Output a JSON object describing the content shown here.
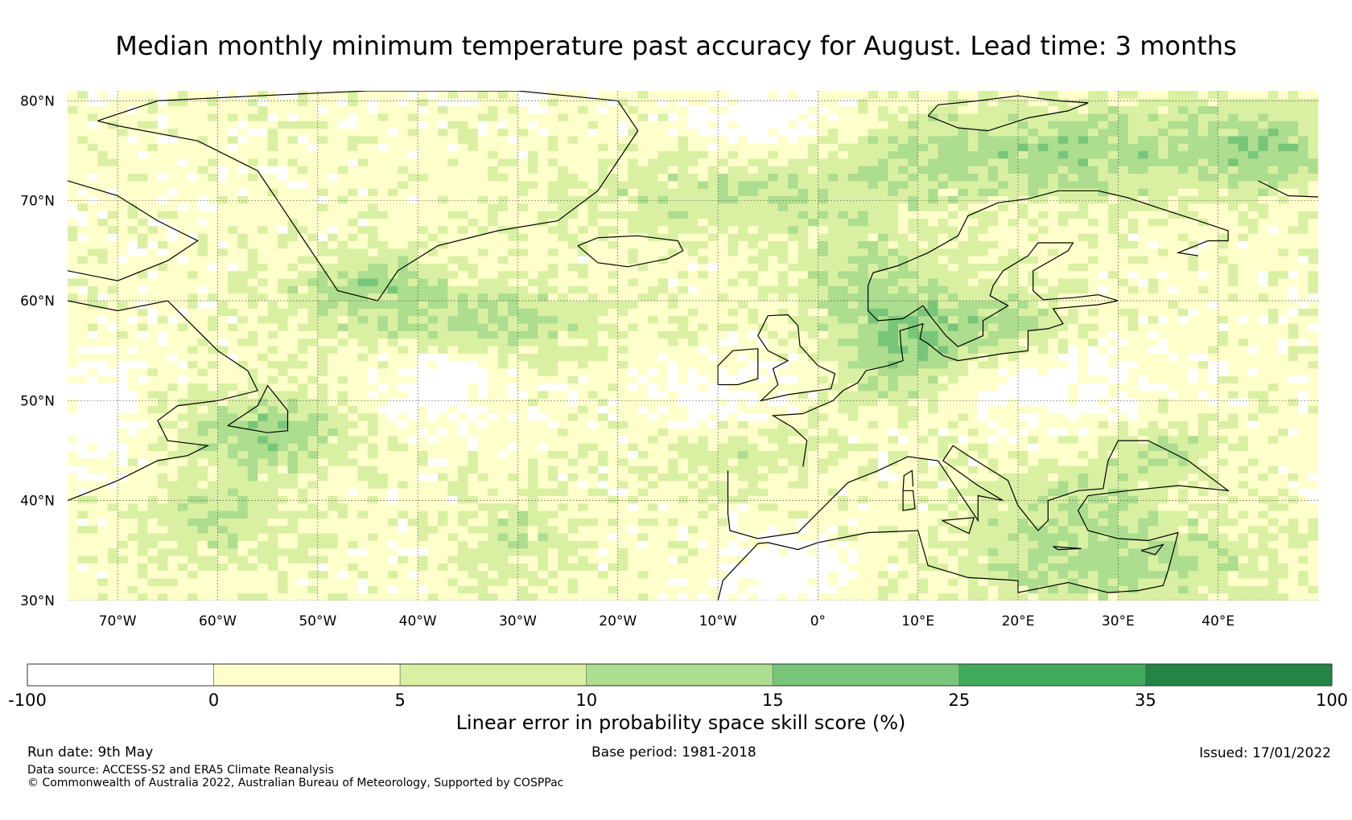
{
  "title": "Median monthly minimum temperature past accuracy for August. Lead time: 3 months",
  "map": {
    "lat_ticks": [
      "80°N",
      "70°N",
      "60°N",
      "50°N",
      "40°N",
      "30°N"
    ],
    "lon_ticks": [
      "70°W",
      "60°W",
      "50°W",
      "40°W",
      "30°W",
      "20°W",
      "10°W",
      "0°",
      "10°E",
      "20°E",
      "30°E",
      "40°E"
    ],
    "lat_range": [
      30,
      81
    ],
    "lon_range": [
      -75,
      50
    ]
  },
  "colorbar": {
    "label": "Linear error in probability space skill score (%)",
    "bounds": [
      "-100",
      "0",
      "5",
      "10",
      "15",
      "25",
      "35",
      "100"
    ],
    "colors": [
      "#ffffff",
      "#ffffcc",
      "#d9f0a3",
      "#addd8e",
      "#78c679",
      "#41ab5d",
      "#238443"
    ]
  },
  "footer": {
    "run_date": "Run date: 9th May",
    "base_period": "Base period: 1981-2018",
    "issued": "Issued: 17/01/2022",
    "data_source": "Data source: ACCESS-S2 and ERA5 Climate Reanalysis",
    "copyright": "© Commonwealth of Australia 2022, Australian Bureau of Meteorology, Supported by COSPPac"
  }
}
